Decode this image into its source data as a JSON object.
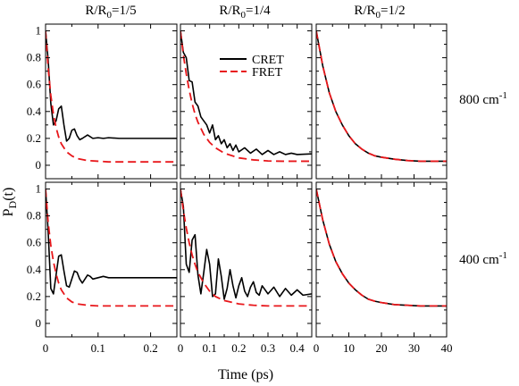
{
  "figure": {
    "xlabel": "Time (ps)",
    "ylabel": "P_D(t)",
    "ylabel_main": "P",
    "ylabel_sub": "D",
    "ylabel_rest": "(t)",
    "legend": {
      "placement": "top-right of panel R/R0=1/4, 800 cm-1",
      "cret_label": "CRET",
      "fret_label": "FRET"
    },
    "colors": {
      "cret": "#000000",
      "fret": "#e8171b"
    },
    "columns": [
      {
        "title_main": "R/R",
        "title_sub": "0",
        "title_rest": "=1/5"
      },
      {
        "title_main": "R/R",
        "title_sub": "0",
        "title_rest": "=1/4"
      },
      {
        "title_main": "R/R",
        "title_sub": "0",
        "title_rest": "=1/2"
      }
    ],
    "rows": [
      {
        "label_main": "800 cm",
        "label_sup": "-1"
      },
      {
        "label_main": "400 cm",
        "label_sup": "-1"
      }
    ]
  },
  "chart_data": [
    {
      "type": "line",
      "panel": "R/R0=1/5, 800 cm-1",
      "xlim": [
        0,
        0.25
      ],
      "ylim": [
        -0.1,
        1.05
      ],
      "xticks": [
        0,
        0.1,
        0.2
      ],
      "xticklabels": [
        "",
        "",
        ""
      ],
      "yticks": [
        0,
        0.2,
        0.4,
        0.6,
        0.8,
        1
      ],
      "yticklabels": [
        "0",
        "0.2",
        "0.4",
        "0.6",
        "0.8",
        "1"
      ],
      "series": [
        {
          "name": "CRET",
          "x": [
            0,
            0.005,
            0.01,
            0.015,
            0.02,
            0.025,
            0.03,
            0.035,
            0.04,
            0.045,
            0.05,
            0.055,
            0.06,
            0.065,
            0.07,
            0.08,
            0.09,
            0.1,
            0.11,
            0.12,
            0.14,
            0.16,
            0.18,
            0.2,
            0.22,
            0.25
          ],
          "y": [
            1.0,
            0.78,
            0.46,
            0.3,
            0.33,
            0.42,
            0.44,
            0.3,
            0.18,
            0.2,
            0.26,
            0.27,
            0.22,
            0.19,
            0.2,
            0.225,
            0.2,
            0.205,
            0.2,
            0.205,
            0.2,
            0.2,
            0.2,
            0.2,
            0.2,
            0.2
          ]
        },
        {
          "name": "FRET",
          "x": [
            0,
            0.005,
            0.01,
            0.015,
            0.02,
            0.025,
            0.03,
            0.04,
            0.05,
            0.06,
            0.08,
            0.1,
            0.12,
            0.15,
            0.2,
            0.25
          ],
          "y": [
            1.0,
            0.72,
            0.52,
            0.38,
            0.28,
            0.21,
            0.16,
            0.1,
            0.07,
            0.05,
            0.035,
            0.03,
            0.025,
            0.025,
            0.025,
            0.025
          ]
        }
      ]
    },
    {
      "type": "line",
      "panel": "R/R0=1/4, 800 cm-1",
      "xlim": [
        0,
        0.45
      ],
      "ylim": [
        -0.1,
        1.05
      ],
      "xticks": [
        0,
        0.1,
        0.2,
        0.3,
        0.4
      ],
      "xticklabels": [
        "",
        "",
        "",
        "",
        ""
      ],
      "yticks": [
        0,
        0.2,
        0.4,
        0.6,
        0.8,
        1
      ],
      "yticklabels": [
        "",
        "",
        "",
        "",
        "",
        ""
      ],
      "series": [
        {
          "name": "CRET",
          "x": [
            0,
            0.01,
            0.02,
            0.03,
            0.04,
            0.05,
            0.06,
            0.07,
            0.08,
            0.09,
            0.1,
            0.11,
            0.12,
            0.13,
            0.14,
            0.15,
            0.16,
            0.17,
            0.18,
            0.19,
            0.2,
            0.22,
            0.24,
            0.26,
            0.28,
            0.3,
            0.32,
            0.34,
            0.36,
            0.38,
            0.4,
            0.45
          ],
          "y": [
            1.0,
            0.84,
            0.8,
            0.63,
            0.62,
            0.47,
            0.44,
            0.36,
            0.33,
            0.3,
            0.24,
            0.3,
            0.19,
            0.22,
            0.16,
            0.19,
            0.13,
            0.16,
            0.11,
            0.15,
            0.1,
            0.13,
            0.09,
            0.12,
            0.08,
            0.11,
            0.08,
            0.1,
            0.08,
            0.09,
            0.08,
            0.085
          ]
        },
        {
          "name": "FRET",
          "x": [
            0,
            0.01,
            0.02,
            0.03,
            0.04,
            0.05,
            0.06,
            0.08,
            0.1,
            0.12,
            0.15,
            0.2,
            0.25,
            0.3,
            0.35,
            0.4,
            0.45
          ],
          "y": [
            1.0,
            0.82,
            0.68,
            0.56,
            0.46,
            0.38,
            0.32,
            0.23,
            0.17,
            0.13,
            0.09,
            0.055,
            0.04,
            0.032,
            0.03,
            0.03,
            0.03
          ]
        }
      ]
    },
    {
      "type": "line",
      "panel": "R/R0=1/2, 800 cm-1",
      "xlim": [
        0,
        40
      ],
      "ylim": [
        -0.1,
        1.05
      ],
      "xticks": [
        0,
        10,
        20,
        30,
        40
      ],
      "xticklabels": [
        "",
        "",
        "",
        "",
        ""
      ],
      "yticks": [
        0,
        0.2,
        0.4,
        0.6,
        0.8,
        1
      ],
      "yticklabels": [
        "",
        "",
        "",
        "",
        "",
        ""
      ],
      "series": [
        {
          "name": "CRET",
          "x": [
            0,
            2,
            4,
            6,
            8,
            10,
            12,
            14,
            16,
            18,
            20,
            24,
            28,
            32,
            36,
            40
          ],
          "y": [
            1.0,
            0.74,
            0.54,
            0.4,
            0.3,
            0.22,
            0.16,
            0.12,
            0.09,
            0.07,
            0.06,
            0.045,
            0.035,
            0.03,
            0.03,
            0.03
          ]
        },
        {
          "name": "FRET",
          "x": [
            0,
            2,
            4,
            6,
            8,
            10,
            12,
            14,
            16,
            18,
            20,
            24,
            28,
            32,
            36,
            40
          ],
          "y": [
            1.0,
            0.74,
            0.54,
            0.4,
            0.3,
            0.22,
            0.16,
            0.12,
            0.09,
            0.07,
            0.06,
            0.045,
            0.035,
            0.03,
            0.03,
            0.03
          ]
        }
      ]
    },
    {
      "type": "line",
      "panel": "R/R0=1/5, 400 cm-1",
      "xlim": [
        0,
        0.25
      ],
      "ylim": [
        -0.1,
        1.05
      ],
      "xticks": [
        0,
        0.1,
        0.2
      ],
      "xticklabels": [
        "0",
        "0.1",
        "0.2"
      ],
      "yticks": [
        0,
        0.2,
        0.4,
        0.6,
        0.8,
        1
      ],
      "yticklabels": [
        "0",
        "0.2",
        "0.4",
        "0.6",
        "0.8",
        "1"
      ],
      "series": [
        {
          "name": "CRET",
          "x": [
            0,
            0.005,
            0.01,
            0.015,
            0.02,
            0.025,
            0.03,
            0.035,
            0.04,
            0.045,
            0.05,
            0.055,
            0.06,
            0.065,
            0.07,
            0.075,
            0.08,
            0.085,
            0.09,
            0.1,
            0.11,
            0.12,
            0.14,
            0.16,
            0.2,
            0.25
          ],
          "y": [
            1.0,
            0.68,
            0.26,
            0.22,
            0.36,
            0.5,
            0.51,
            0.39,
            0.28,
            0.27,
            0.33,
            0.39,
            0.38,
            0.33,
            0.3,
            0.33,
            0.36,
            0.35,
            0.33,
            0.34,
            0.35,
            0.34,
            0.34,
            0.34,
            0.34,
            0.34
          ]
        },
        {
          "name": "FRET",
          "x": [
            0,
            0.005,
            0.01,
            0.015,
            0.02,
            0.025,
            0.03,
            0.04,
            0.05,
            0.06,
            0.08,
            0.1,
            0.12,
            0.15,
            0.2,
            0.25
          ],
          "y": [
            1.0,
            0.75,
            0.58,
            0.46,
            0.37,
            0.3,
            0.25,
            0.19,
            0.16,
            0.145,
            0.135,
            0.13,
            0.13,
            0.13,
            0.13,
            0.13
          ]
        }
      ]
    },
    {
      "type": "line",
      "panel": "R/R0=1/4, 400 cm-1",
      "xlim": [
        0,
        0.45
      ],
      "ylim": [
        -0.1,
        1.05
      ],
      "xticks": [
        0,
        0.1,
        0.2,
        0.3,
        0.4
      ],
      "xticklabels": [
        "0",
        "0.1",
        "0.2",
        "0.3",
        "0.4"
      ],
      "yticks": [
        0,
        0.2,
        0.4,
        0.6,
        0.8,
        1
      ],
      "yticklabels": [
        "",
        "",
        "",
        "",
        "",
        ""
      ],
      "series": [
        {
          "name": "CRET",
          "x": [
            0,
            0.01,
            0.02,
            0.03,
            0.04,
            0.05,
            0.06,
            0.07,
            0.08,
            0.09,
            0.1,
            0.11,
            0.12,
            0.13,
            0.14,
            0.15,
            0.16,
            0.17,
            0.18,
            0.19,
            0.2,
            0.21,
            0.22,
            0.23,
            0.24,
            0.25,
            0.26,
            0.27,
            0.28,
            0.3,
            0.32,
            0.34,
            0.36,
            0.38,
            0.4,
            0.42,
            0.45
          ],
          "y": [
            1.0,
            0.87,
            0.44,
            0.38,
            0.62,
            0.66,
            0.36,
            0.22,
            0.38,
            0.55,
            0.44,
            0.2,
            0.22,
            0.48,
            0.35,
            0.18,
            0.26,
            0.4,
            0.28,
            0.19,
            0.28,
            0.34,
            0.24,
            0.2,
            0.27,
            0.31,
            0.23,
            0.21,
            0.28,
            0.22,
            0.27,
            0.2,
            0.26,
            0.21,
            0.25,
            0.21,
            0.22
          ]
        },
        {
          "name": "FRET",
          "x": [
            0,
            0.01,
            0.02,
            0.03,
            0.04,
            0.05,
            0.06,
            0.08,
            0.1,
            0.12,
            0.15,
            0.2,
            0.25,
            0.3,
            0.35,
            0.4,
            0.45
          ],
          "y": [
            1.0,
            0.84,
            0.71,
            0.6,
            0.51,
            0.44,
            0.38,
            0.3,
            0.24,
            0.2,
            0.17,
            0.145,
            0.135,
            0.13,
            0.13,
            0.13,
            0.13
          ]
        }
      ]
    },
    {
      "type": "line",
      "panel": "R/R0=1/2, 400 cm-1",
      "xlim": [
        0,
        40
      ],
      "ylim": [
        -0.1,
        1.05
      ],
      "xticks": [
        0,
        10,
        20,
        30,
        40
      ],
      "xticklabels": [
        "0",
        "10",
        "20",
        "30",
        "40"
      ],
      "yticks": [
        0,
        0.2,
        0.4,
        0.6,
        0.8,
        1
      ],
      "yticklabels": [
        "",
        "",
        "",
        "",
        "",
        ""
      ],
      "series": [
        {
          "name": "CRET",
          "x": [
            0,
            2,
            4,
            6,
            8,
            10,
            12,
            14,
            16,
            18,
            20,
            24,
            28,
            32,
            36,
            40
          ],
          "y": [
            1.0,
            0.77,
            0.59,
            0.46,
            0.37,
            0.3,
            0.25,
            0.21,
            0.18,
            0.165,
            0.155,
            0.14,
            0.135,
            0.13,
            0.13,
            0.13
          ]
        },
        {
          "name": "FRET",
          "x": [
            0,
            2,
            4,
            6,
            8,
            10,
            12,
            14,
            16,
            18,
            20,
            24,
            28,
            32,
            36,
            40
          ],
          "y": [
            1.0,
            0.77,
            0.59,
            0.46,
            0.37,
            0.3,
            0.25,
            0.21,
            0.18,
            0.165,
            0.155,
            0.14,
            0.135,
            0.13,
            0.13,
            0.13
          ]
        }
      ]
    }
  ]
}
